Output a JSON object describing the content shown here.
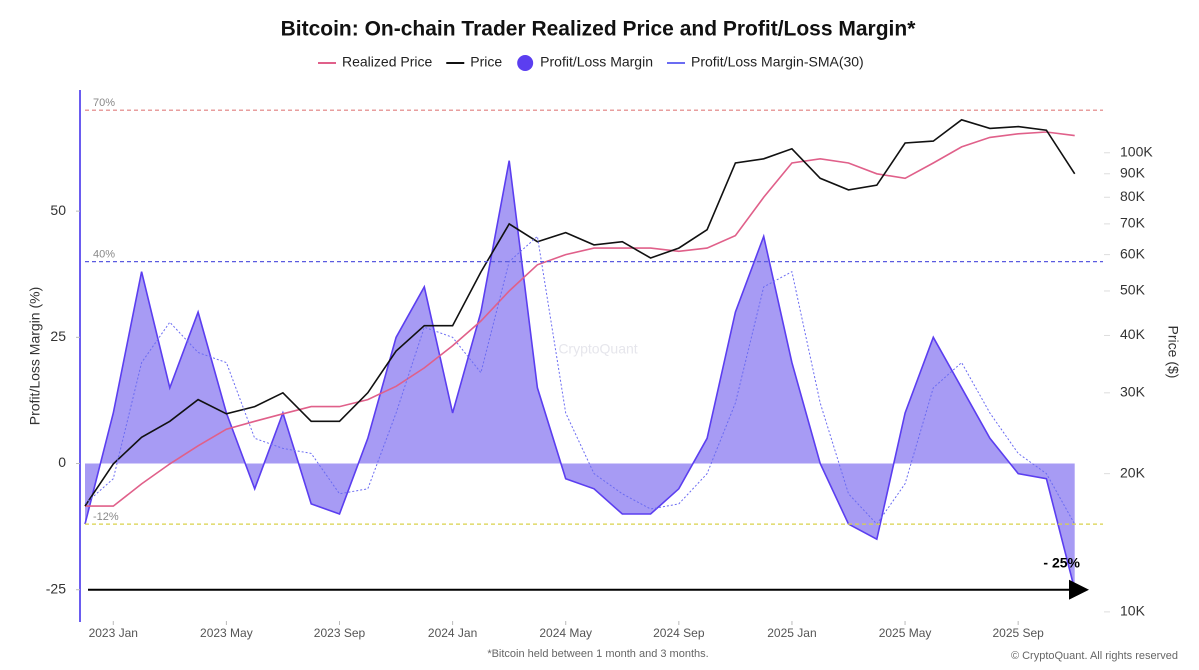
{
  "chart_data": {
    "type": "combo",
    "title": "Bitcoin: On-chain Trader Realized Price and Profit/Loss Margin*",
    "footnote": "*Bitcoin held between 1 month and 3 months.",
    "credit": "© CryptoQuant. All rights reserved",
    "watermark": "CryptoQuant",
    "y_label": "Profit/Loss Margin (%)",
    "y2_label": "Price ($)",
    "x": [
      "2022-12",
      "2023-01",
      "2023-02",
      "2023-03",
      "2023-04",
      "2023-05",
      "2023-06",
      "2023-07",
      "2023-08",
      "2023-09",
      "2023-10",
      "2023-11",
      "2023-12",
      "2024-01",
      "2024-02",
      "2024-03",
      "2024-04",
      "2024-05",
      "2024-06",
      "2024-07",
      "2024-08",
      "2024-09",
      "2024-10",
      "2024-11",
      "2024-12",
      "2025-01",
      "2025-02",
      "2025-03",
      "2025-04",
      "2025-05",
      "2025-06",
      "2025-07",
      "2025-08",
      "2025-09",
      "2025-10",
      "2025-11"
    ],
    "xlim": [
      "2022-12",
      "2025-12"
    ],
    "xticks": [
      {
        "value": "2023-01",
        "label": "2023 Jan"
      },
      {
        "value": "2023-05",
        "label": "2023 May"
      },
      {
        "value": "2023-09",
        "label": "2023 Sep"
      },
      {
        "value": "2024-01",
        "label": "2024 Jan"
      },
      {
        "value": "2024-05",
        "label": "2024 May"
      },
      {
        "value": "2024-09",
        "label": "2024 Sep"
      },
      {
        "value": "2025-01",
        "label": "2025 Jan"
      },
      {
        "value": "2025-05",
        "label": "2025 May"
      },
      {
        "value": "2025-09",
        "label": "2025 Sep"
      }
    ],
    "ylim": [
      -31,
      74
    ],
    "yticks": [
      -25,
      0,
      25,
      50
    ],
    "y2lim": [
      9600,
      137000
    ],
    "y2scale": "log",
    "y2ticks": [
      {
        "value": 10000,
        "label": "10K"
      },
      {
        "value": 20000,
        "label": "20K"
      },
      {
        "value": 30000,
        "label": "30K"
      },
      {
        "value": 40000,
        "label": "40K"
      },
      {
        "value": 50000,
        "label": "50K"
      },
      {
        "value": 60000,
        "label": "60K"
      },
      {
        "value": 70000,
        "label": "70K"
      },
      {
        "value": 80000,
        "label": "80K"
      },
      {
        "value": 90000,
        "label": "90K"
      },
      {
        "value": 100000,
        "label": "100K"
      }
    ],
    "reference_lines": [
      {
        "value": 70,
        "label": "70%",
        "color": "#e07f7f"
      },
      {
        "value": 40,
        "label": "40%",
        "color": "#5b5be0"
      },
      {
        "value": -12,
        "label": "-12%",
        "color": "#d8d24a"
      }
    ],
    "annotations": [
      {
        "text": "- 25%",
        "value": -25
      }
    ],
    "series": [
      {
        "name": "Realized Price",
        "type": "line",
        "axis": "y2",
        "color": "#e0608a",
        "values": [
          17000,
          17000,
          19000,
          21000,
          23000,
          25000,
          26000,
          27000,
          28000,
          28000,
          29000,
          31000,
          34000,
          38000,
          43000,
          50000,
          57000,
          60000,
          62000,
          62000,
          62000,
          61000,
          62000,
          66000,
          80000,
          95000,
          97000,
          95000,
          90000,
          88000,
          95000,
          103000,
          108000,
          110000,
          111000,
          109000
        ]
      },
      {
        "name": "Price",
        "type": "line",
        "axis": "y2",
        "color": "#111111",
        "values": [
          17000,
          21000,
          24000,
          26000,
          29000,
          27000,
          28000,
          30000,
          26000,
          26000,
          30000,
          37000,
          42000,
          42000,
          55000,
          70000,
          64000,
          67000,
          63000,
          64000,
          59000,
          62000,
          68000,
          95000,
          97000,
          102000,
          88000,
          83000,
          85000,
          105000,
          106000,
          118000,
          113000,
          114000,
          112000,
          90000
        ]
      },
      {
        "name": "Profit/Loss Margin",
        "type": "area",
        "axis": "y",
        "color": "#5b3ef0",
        "fill": "#9d90f3",
        "values": [
          -12,
          10,
          38,
          15,
          30,
          10,
          -5,
          10,
          -8,
          -10,
          5,
          25,
          35,
          10,
          30,
          60,
          15,
          -3,
          -5,
          -10,
          -10,
          -5,
          5,
          30,
          45,
          20,
          0,
          -12,
          -15,
          10,
          25,
          15,
          5,
          -2,
          -3,
          -25
        ]
      },
      {
        "name": "Profit/Loss Margin-SMA(30)",
        "type": "line",
        "axis": "y",
        "color": "#6b6cf2",
        "values": [
          -8,
          -3,
          20,
          28,
          22,
          20,
          5,
          3,
          2,
          -6,
          -5,
          10,
          27,
          25,
          18,
          40,
          45,
          10,
          -2,
          -6,
          -9,
          -8,
          -2,
          12,
          35,
          38,
          12,
          -6,
          -12,
          -4,
          15,
          20,
          10,
          2,
          -2,
          -12
        ]
      }
    ]
  }
}
